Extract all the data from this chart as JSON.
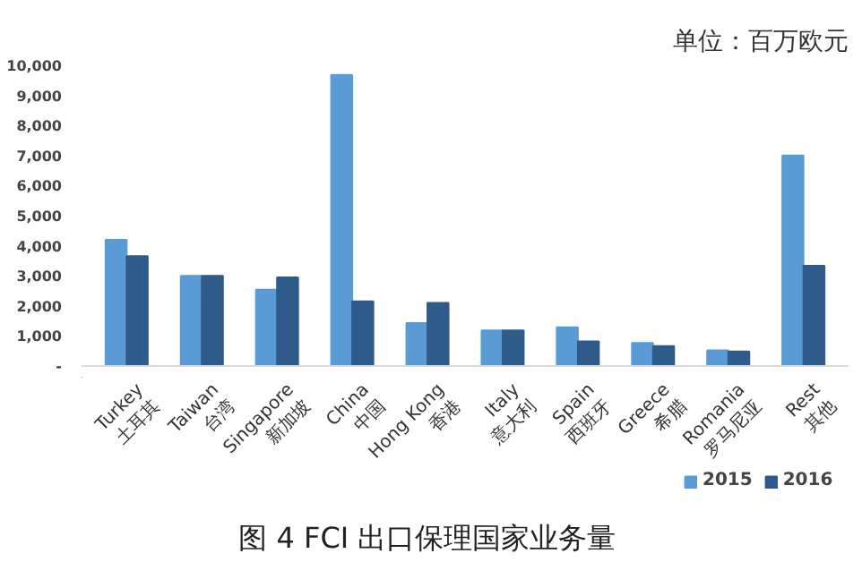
{
  "chart_data": {
    "type": "bar",
    "title": "图 4  FCI 出口保理国家业务量",
    "subtitle": "单位：百万欧元",
    "categories": [
      "Turkey\n土耳其",
      "Taiwan\n台湾",
      "Singapore\n新加坡",
      "China\n中国",
      "Hong Kong\n香港",
      "Italy\n意大利",
      "Spain\n西班牙",
      "Greece\n希腊",
      "Romania\n罗马尼亚",
      "Rest\n其他"
    ],
    "series": [
      {
        "name": "2015",
        "color": "#5b9bd5",
        "values": [
          4200,
          3000,
          2540,
          9680,
          1430,
          1180,
          1290,
          770,
          520,
          7000
        ]
      },
      {
        "name": "2016",
        "color": "#2f5b8a",
        "values": [
          3650,
          3000,
          2950,
          2150,
          2100,
          1180,
          820,
          660,
          480,
          3330
        ]
      }
    ],
    "ylim": [
      0,
      10000
    ],
    "yticks": [
      {
        "value": 0,
        "label": "-"
      },
      {
        "value": 1000,
        "label": "1,000"
      },
      {
        "value": 2000,
        "label": "2,000"
      },
      {
        "value": 3000,
        "label": "3,000"
      },
      {
        "value": 4000,
        "label": "4,000"
      },
      {
        "value": 5000,
        "label": "5,000"
      },
      {
        "value": 6000,
        "label": "6,000"
      },
      {
        "value": 7000,
        "label": "7,000"
      },
      {
        "value": 8000,
        "label": "8,000"
      },
      {
        "value": 9000,
        "label": "9,000"
      },
      {
        "value": 10000,
        "label": "10,000"
      }
    ],
    "grid": false,
    "legend": "bottom right"
  }
}
